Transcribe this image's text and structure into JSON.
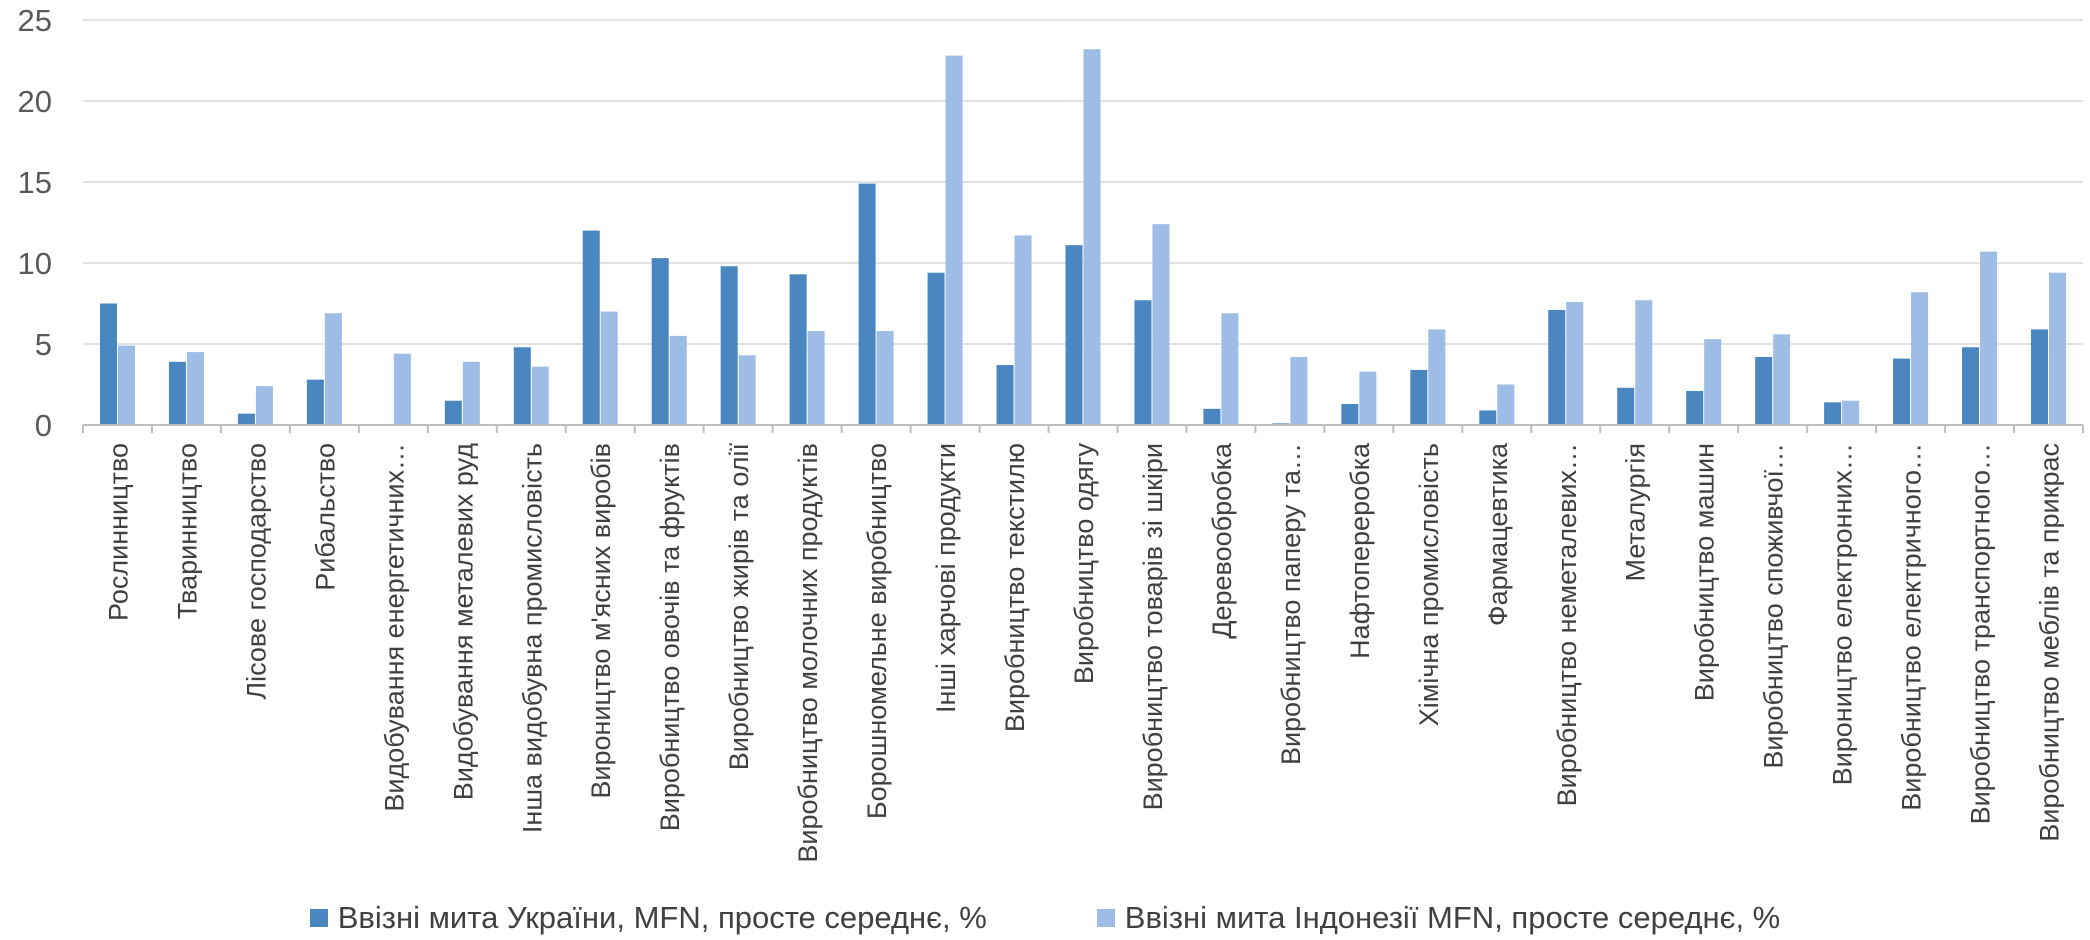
{
  "chart_data": {
    "type": "bar",
    "title": "",
    "xlabel": "",
    "ylabel": "",
    "ylim": [
      0,
      25
    ],
    "yticks": [
      "0",
      "5",
      "10",
      "15",
      "20",
      "25"
    ],
    "grid": true,
    "legend_position": "bottom",
    "categories": [
      "Рослинництво",
      "Тваринництво",
      "Лісове господарство",
      "Рибальство",
      "Видобування енергетичних…",
      "Видобування металевих руд",
      "Інша видобувна промисловість",
      "Вироництво м'ясних виробів",
      "Виробництво овочів та фруктів",
      "Виробництво жирів та олії",
      "Виробництво молочних продуктів",
      "Борошномельне виробництво",
      "Інші харчові продукти",
      "Виробництво текстилю",
      "Виробництво одягу",
      "Виробництво товарів зі шкіри",
      "Деревообробка",
      "Виробництво паперу та…",
      "Нафтопереробка",
      "Хімічна промисловість",
      "Фармацевтика",
      "Виробництво неметалевих…",
      "Металургія",
      "Виробництво машин",
      "Виробництво споживчої…",
      "Вироництво електронних…",
      "Виробництво електричного…",
      "Виробництво транспортного…",
      "Виробництво меблів та прикрас"
    ],
    "series": [
      {
        "name": "Ввізні мита України, MFN, просте середнє, %",
        "color": "#4A86C0",
        "values": [
          7.5,
          3.9,
          0.7,
          2.8,
          0,
          1.5,
          4.8,
          12.0,
          10.3,
          9.8,
          9.3,
          14.9,
          9.4,
          3.7,
          11.1,
          7.7,
          1.0,
          0.1,
          1.3,
          3.4,
          0.9,
          7.1,
          2.3,
          2.1,
          4.2,
          1.4,
          4.1,
          4.8,
          5.9
        ]
      },
      {
        "name": "Ввізні мита Індонезії MFN, просте середнє, %",
        "color": "#9DBDE6",
        "values": [
          4.9,
          4.5,
          2.4,
          6.9,
          4.4,
          3.9,
          3.6,
          7.0,
          5.5,
          4.3,
          5.8,
          5.8,
          22.8,
          11.7,
          23.2,
          12.4,
          6.9,
          4.2,
          3.3,
          5.9,
          2.5,
          7.6,
          7.7,
          5.3,
          5.6,
          1.5,
          8.2,
          10.7,
          9.4
        ]
      }
    ]
  }
}
